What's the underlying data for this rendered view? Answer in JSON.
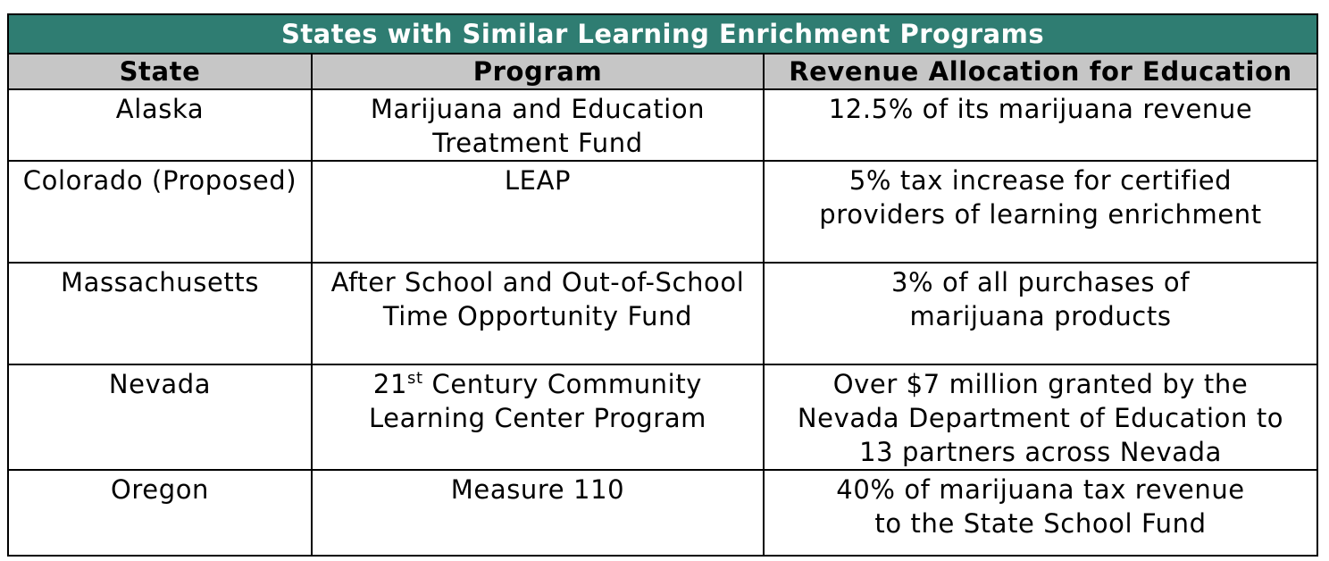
{
  "title": "States with Similar Learning Enrichment Programs",
  "headers": {
    "state": "State",
    "program": "Program",
    "revenue": "Revenue Allocation for Education"
  },
  "rows": [
    {
      "state": "Alaska",
      "program": [
        "Marijuana and Education",
        "Treatment Fund"
      ],
      "revenue": [
        "12.5% of its marijuana revenue"
      ]
    },
    {
      "state": "Colorado (Proposed)",
      "program": [
        "LEAP"
      ],
      "revenue": [
        "5% tax increase for certified",
        "providers of learning enrichment"
      ]
    },
    {
      "state": "Massachusetts",
      "program": [
        "After School and Out-of-School",
        "Time Opportunity Fund"
      ],
      "revenue": [
        "3% of all purchases of",
        "marijuana products"
      ]
    },
    {
      "state": "Nevada",
      "program_sup": {
        "number": "21",
        "suffix": "st",
        "rest": " Century Community"
      },
      "program": [
        "Learning Center Program"
      ],
      "revenue": [
        "Over $7 million granted by the",
        "Nevada Department of Education to",
        "13 partners across Nevada"
      ]
    },
    {
      "state": "Oregon",
      "program": [
        "Measure 110"
      ],
      "revenue": [
        "40% of marijuana tax revenue",
        "to the State School Fund"
      ]
    }
  ],
  "colors": {
    "title_bg": "#2f7d72",
    "header_bg": "#c6c6c6"
  }
}
